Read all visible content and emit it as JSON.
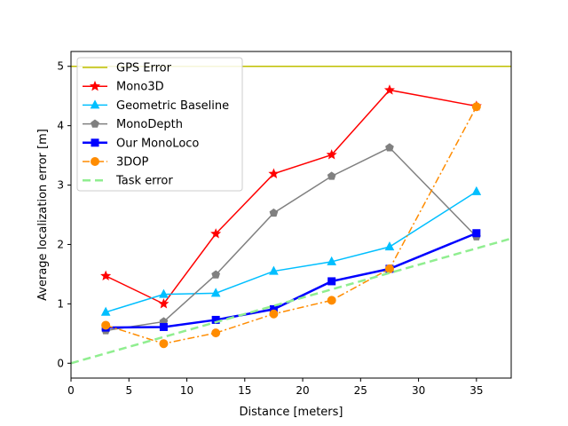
{
  "chart_data": {
    "type": "line",
    "title": "",
    "xlabel": "Distance [meters]",
    "ylabel": "Average localization error [m]",
    "xlim": [
      0,
      38
    ],
    "ylim": [
      -0.25,
      5.25
    ],
    "xticks": [
      0,
      5,
      10,
      15,
      20,
      25,
      30,
      35
    ],
    "yticks": [
      0,
      1,
      2,
      3,
      4,
      5
    ],
    "grid": false,
    "legend_position": "top-left",
    "x": [
      3,
      8,
      12.5,
      17.5,
      22.5,
      27.5,
      35
    ],
    "series": [
      {
        "name": "GPS Error",
        "color": "#bfbf00",
        "style": "solid",
        "marker": "none",
        "width": 1.5,
        "x": [
          0,
          38
        ],
        "values": [
          5,
          5
        ]
      },
      {
        "name": "Mono3D",
        "color": "#ff0000",
        "style": "solid",
        "marker": "star",
        "width": 1.5,
        "values": [
          1.47,
          1.0,
          2.18,
          3.19,
          3.51,
          4.6,
          4.33
        ]
      },
      {
        "name": "Geometric Baseline",
        "color": "#00bfff",
        "style": "solid",
        "marker": "triangle",
        "width": 1.5,
        "values": [
          0.86,
          1.16,
          1.18,
          1.55,
          1.71,
          1.96,
          2.89
        ]
      },
      {
        "name": "MonoDepth",
        "color": "#808080",
        "style": "solid",
        "marker": "pentagon",
        "width": 1.5,
        "values": [
          0.55,
          0.7,
          1.49,
          2.53,
          3.15,
          3.63,
          2.13
        ]
      },
      {
        "name": "Our MonoLoco",
        "color": "#0000ff",
        "style": "solid",
        "marker": "square",
        "width": 2.5,
        "values": [
          0.6,
          0.61,
          0.73,
          0.91,
          1.38,
          1.59,
          2.19
        ]
      },
      {
        "name": "3DOP",
        "color": "#ff8c00",
        "style": "dashdot",
        "marker": "circle",
        "width": 1.5,
        "values": [
          0.64,
          0.33,
          0.51,
          0.83,
          1.06,
          1.59,
          4.32
        ]
      },
      {
        "name": "Task error",
        "color": "#90ee90",
        "style": "dashed",
        "marker": "none",
        "width": 2.5,
        "x": [
          0,
          38
        ],
        "values": [
          0,
          2.1
        ]
      }
    ]
  }
}
